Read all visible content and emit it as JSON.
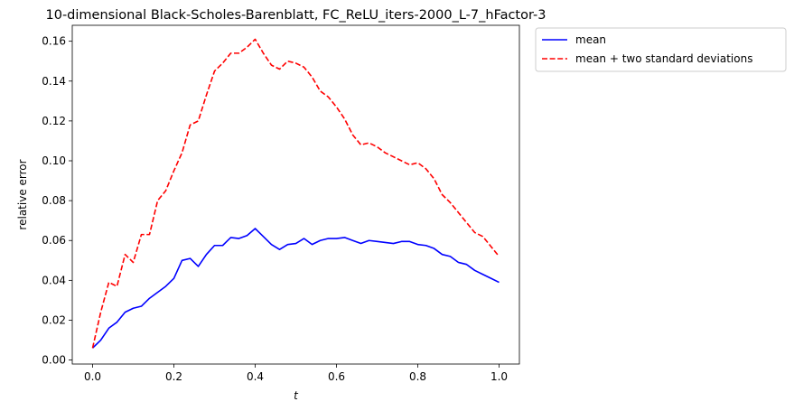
{
  "chart_data": {
    "type": "line",
    "title": "10-dimensional Black-Scholes-Barenblatt, FC_ReLU_iters-2000_L-7_hFactor-3",
    "xlabel": "t",
    "ylabel": "relative error",
    "xlim": [
      -0.05,
      1.05
    ],
    "ylim": [
      -0.002,
      0.168
    ],
    "xticks": [
      0.0,
      0.2,
      0.4,
      0.6,
      0.8,
      1.0
    ],
    "xtick_labels": [
      "0.0",
      "0.2",
      "0.4",
      "0.6",
      "0.8",
      "1.0"
    ],
    "yticks": [
      0.0,
      0.02,
      0.04,
      0.06,
      0.08,
      0.1,
      0.12,
      0.14,
      0.16
    ],
    "ytick_labels": [
      "0.00",
      "0.02",
      "0.04",
      "0.06",
      "0.08",
      "0.10",
      "0.12",
      "0.14",
      "0.16"
    ],
    "grid": false,
    "legend_position": "outside-top-right",
    "x": [
      0.0,
      0.02,
      0.04,
      0.06,
      0.08,
      0.1,
      0.12,
      0.14,
      0.16,
      0.18,
      0.2,
      0.22,
      0.24,
      0.26,
      0.28,
      0.3,
      0.32,
      0.34,
      0.36,
      0.38,
      0.4,
      0.42,
      0.44,
      0.46,
      0.48,
      0.5,
      0.52,
      0.54,
      0.56,
      0.58,
      0.6,
      0.62,
      0.64,
      0.66,
      0.68,
      0.7,
      0.72,
      0.74,
      0.76,
      0.78,
      0.8,
      0.82,
      0.84,
      0.86,
      0.88,
      0.9,
      0.92,
      0.94,
      0.96,
      0.98,
      1.0
    ],
    "series": [
      {
        "name": "mean",
        "color": "#0000ff",
        "dash": "solid",
        "values": [
          0.006,
          0.01,
          0.016,
          0.019,
          0.024,
          0.026,
          0.027,
          0.031,
          0.034,
          0.037,
          0.041,
          0.05,
          0.051,
          0.047,
          0.053,
          0.0575,
          0.0575,
          0.0615,
          0.061,
          0.0625,
          0.066,
          0.062,
          0.058,
          0.0555,
          0.058,
          0.0585,
          0.061,
          0.058,
          0.06,
          0.061,
          0.061,
          0.0615,
          0.06,
          0.0585,
          0.06,
          0.0595,
          0.059,
          0.0585,
          0.0595,
          0.0595,
          0.058,
          0.0575,
          0.056,
          0.053,
          0.052,
          0.049,
          0.048,
          0.045,
          0.043,
          0.041,
          0.039
        ]
      },
      {
        "name": "mean + two standard deviations",
        "color": "#ff0000",
        "dash": "dashed",
        "values": [
          0.006,
          0.024,
          0.039,
          0.037,
          0.053,
          0.049,
          0.063,
          0.063,
          0.08,
          0.085,
          0.095,
          0.104,
          0.118,
          0.12,
          0.133,
          0.145,
          0.149,
          0.154,
          0.154,
          0.157,
          0.161,
          0.154,
          0.148,
          0.146,
          0.15,
          0.149,
          0.147,
          0.142,
          0.135,
          0.132,
          0.127,
          0.121,
          0.113,
          0.108,
          0.109,
          0.107,
          0.104,
          0.102,
          0.1,
          0.098,
          0.099,
          0.096,
          0.091,
          0.083,
          0.079,
          0.074,
          0.069,
          0.064,
          0.062,
          0.057,
          0.052
        ]
      }
    ]
  }
}
